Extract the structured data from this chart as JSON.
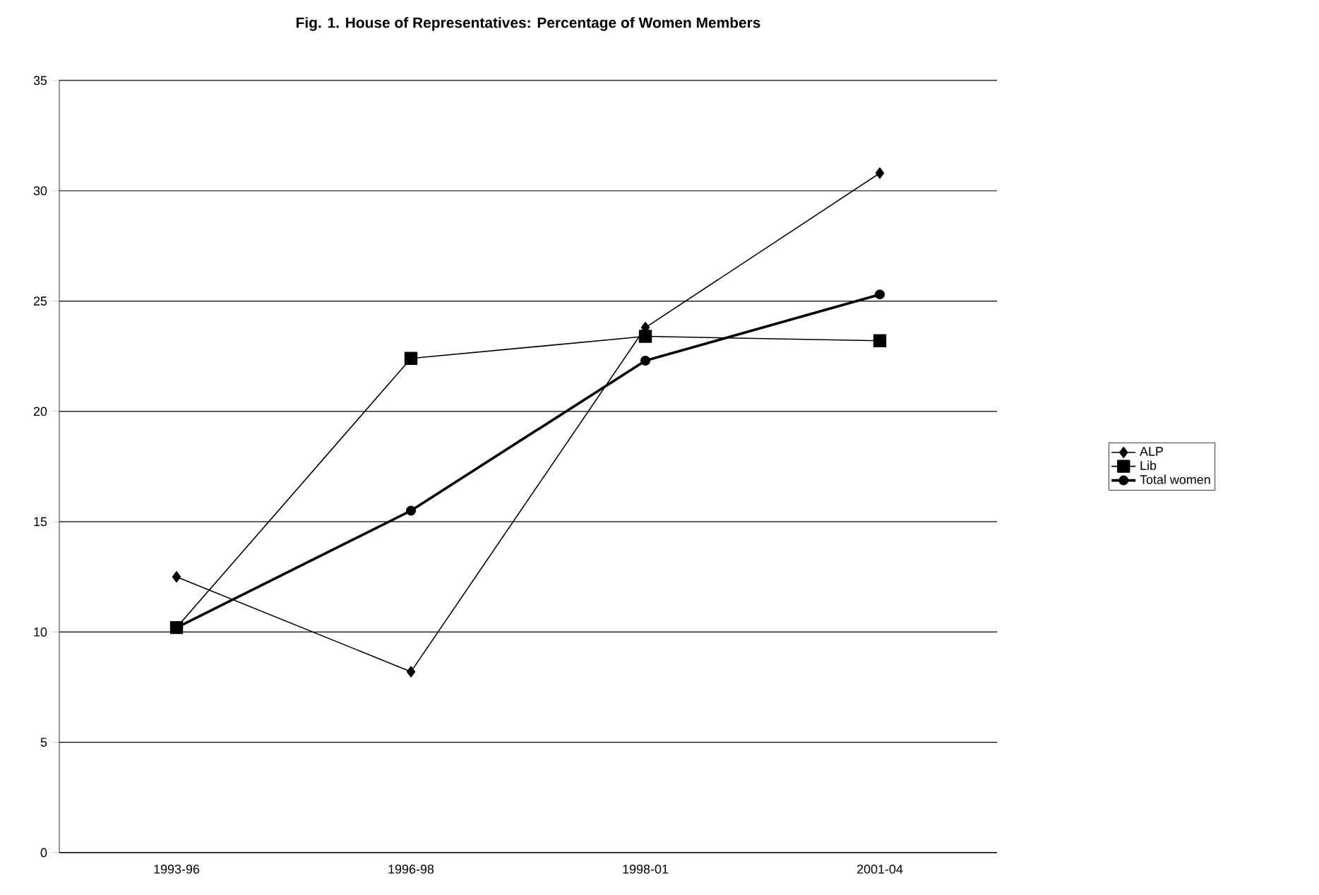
{
  "chart_data": {
    "type": "line",
    "title": "Fig. 1.  House of Representatives: Percentage of Women Members",
    "categories": [
      "1993-96",
      "1996-98",
      "1998-01",
      "2001-04"
    ],
    "series": [
      {
        "name": "ALP",
        "color": "#000000",
        "marker": "diamond",
        "values": [
          12.5,
          8.2,
          23.8,
          30.8
        ]
      },
      {
        "name": "Lib",
        "color": "#000000",
        "marker": "square",
        "values": [
          10.2,
          22.4,
          23.4,
          23.2
        ]
      },
      {
        "name": "Total women",
        "color": "#000000",
        "marker": "circle",
        "values": [
          10.2,
          15.5,
          22.3,
          25.3
        ]
      }
    ],
    "ylim": [
      0,
      35
    ],
    "yticks": [
      0,
      5,
      10,
      15,
      20,
      25,
      30,
      35
    ],
    "grid": "y",
    "legend": "right",
    "line_style": "solid"
  }
}
